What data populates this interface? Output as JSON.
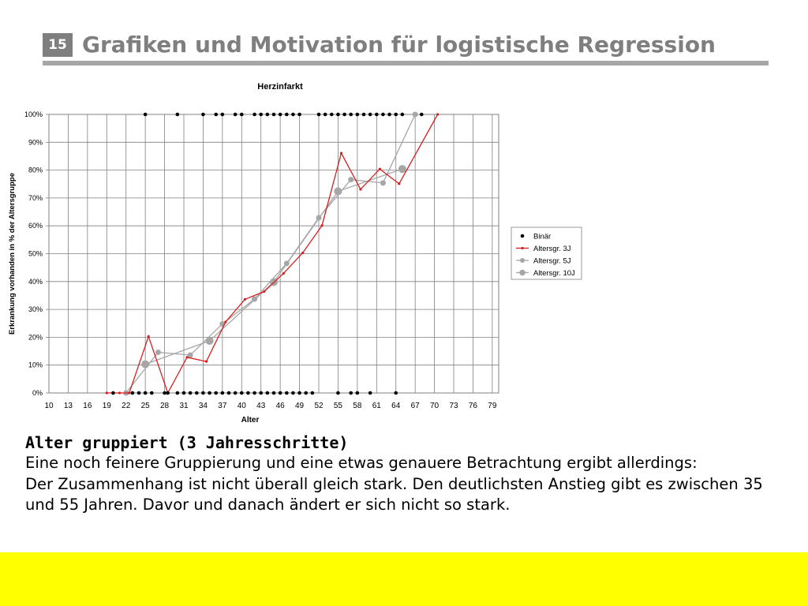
{
  "slide": {
    "number": "15",
    "title": "Grafiken und Motivation für logistische Regression",
    "heading": "Alter gruppiert (3 Jahresschritte)",
    "paragraph1": "Eine noch feinere Gruppierung und eine etwas genauere Betrachtung ergibt allerdings:",
    "paragraph2": "Der Zusammenhang ist nicht überall gleich stark. Den deutlichsten Anstieg gibt es zwischen 35 und 55 Jahren. Davor und danach ändert er sich nicht so stark."
  },
  "chart_data": {
    "type": "line",
    "title": "Herzinfarkt",
    "xlabel": "Alter",
    "ylabel": "Erkrankung vorhanden in % der Altersgruppe",
    "xlim": [
      10,
      80
    ],
    "ylim": [
      0,
      100
    ],
    "x_ticks": [
      10,
      13,
      16,
      19,
      22,
      25,
      28,
      31,
      34,
      37,
      40,
      43,
      46,
      49,
      52,
      55,
      58,
      61,
      64,
      67,
      70,
      73,
      76,
      79
    ],
    "x_tick_labels": [
      "10",
      "13",
      "16",
      "19",
      "22",
      "25",
      "28",
      "31",
      "34",
      "37",
      "40",
      "43",
      "46",
      "49",
      "52",
      "55",
      "58",
      "61",
      "64",
      "67",
      "70",
      "73",
      "76",
      "79"
    ],
    "y_ticks": [
      0,
      10,
      20,
      30,
      40,
      50,
      60,
      70,
      80,
      90,
      100
    ],
    "y_tick_labels": [
      "0%",
      "10%",
      "20%",
      "30%",
      "40%",
      "50%",
      "60%",
      "70%",
      "80%",
      "90%",
      "100%"
    ],
    "grid": true,
    "legend_position": "right",
    "series": [
      {
        "name": "Binär",
        "style": "dots",
        "color": "#000000",
        "points": [
          [
            20,
            0
          ],
          [
            23,
            0
          ],
          [
            24,
            0
          ],
          [
            25,
            0
          ],
          [
            26,
            0
          ],
          [
            28,
            0
          ],
          [
            28.5,
            0
          ],
          [
            30,
            0
          ],
          [
            31,
            0
          ],
          [
            32,
            0
          ],
          [
            33,
            0
          ],
          [
            34,
            0
          ],
          [
            35,
            0
          ],
          [
            36,
            0
          ],
          [
            37,
            0
          ],
          [
            38,
            0
          ],
          [
            39,
            0
          ],
          [
            40,
            0
          ],
          [
            41,
            0
          ],
          [
            42,
            0
          ],
          [
            43,
            0
          ],
          [
            44,
            0
          ],
          [
            45,
            0
          ],
          [
            46,
            0
          ],
          [
            47,
            0
          ],
          [
            48,
            0
          ],
          [
            49,
            0
          ],
          [
            50,
            0
          ],
          [
            51,
            0
          ],
          [
            55,
            0
          ],
          [
            57,
            0
          ],
          [
            58,
            0
          ],
          [
            60,
            0
          ],
          [
            64,
            0
          ],
          [
            25,
            100
          ],
          [
            30,
            100
          ],
          [
            34,
            100
          ],
          [
            36,
            100
          ],
          [
            37,
            100
          ],
          [
            39,
            100
          ],
          [
            40,
            100
          ],
          [
            42,
            100
          ],
          [
            43,
            100
          ],
          [
            44,
            100
          ],
          [
            45,
            100
          ],
          [
            46,
            100
          ],
          [
            47,
            100
          ],
          [
            48,
            100
          ],
          [
            49,
            100
          ],
          [
            52,
            100
          ],
          [
            53,
            100
          ],
          [
            54,
            100
          ],
          [
            55,
            100
          ],
          [
            56,
            100
          ],
          [
            57,
            100
          ],
          [
            58,
            100
          ],
          [
            59,
            100
          ],
          [
            60,
            100
          ],
          [
            61,
            100
          ],
          [
            62,
            100
          ],
          [
            63,
            100
          ],
          [
            64,
            100
          ],
          [
            65,
            100
          ],
          [
            68,
            100
          ]
        ]
      },
      {
        "name": "Altersgr. 3J",
        "style": "line-marker",
        "color": "#d62020",
        "points": [
          [
            19,
            0
          ],
          [
            21,
            0
          ],
          [
            22.5,
            0
          ],
          [
            25.5,
            20.3
          ],
          [
            28.5,
            0
          ],
          [
            31.5,
            12.8
          ],
          [
            34.5,
            11.3
          ],
          [
            37.5,
            25.5
          ],
          [
            40.5,
            33.6
          ],
          [
            43.5,
            36.4
          ],
          [
            46.5,
            42.9
          ],
          [
            49.5,
            50.3
          ],
          [
            52.5,
            60.1
          ],
          [
            55.5,
            86.1
          ],
          [
            58.5,
            73.1
          ],
          [
            61.5,
            80.4
          ],
          [
            64.5,
            75.1
          ],
          [
            70.5,
            100
          ]
        ]
      },
      {
        "name": "Altersgr. 5J",
        "style": "line-marker",
        "color": "#a6a6a6",
        "points": [
          [
            22,
            0
          ],
          [
            27,
            14.6
          ],
          [
            32,
            13.6
          ],
          [
            37,
            24.8
          ],
          [
            42,
            33.7
          ],
          [
            47,
            46.5
          ],
          [
            52,
            62.9
          ],
          [
            57,
            76.6
          ],
          [
            62,
            75.4
          ],
          [
            67,
            100
          ]
        ]
      },
      {
        "name": "Altersgr. 10J",
        "style": "line-marker-large",
        "color": "#a6a6a6",
        "points": [
          [
            25,
            10.3
          ],
          [
            35,
            18.7
          ],
          [
            45,
            39.8
          ],
          [
            55,
            72.4
          ],
          [
            65,
            80.4
          ]
        ]
      }
    ]
  }
}
